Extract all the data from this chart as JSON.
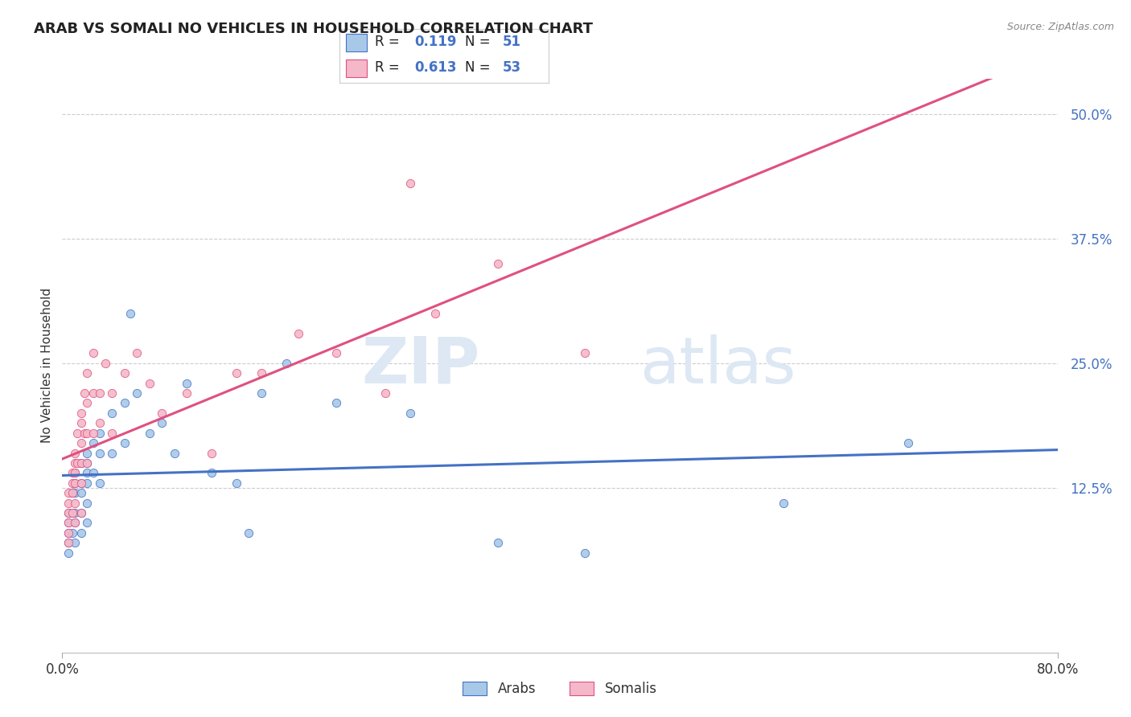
{
  "title": "ARAB VS SOMALI NO VEHICLES IN HOUSEHOLD CORRELATION CHART",
  "source_text": "Source: ZipAtlas.com",
  "ylabel": "No Vehicles in Household",
  "xmin": 0.0,
  "xmax": 0.8,
  "ymin": -0.04,
  "ymax": 0.535,
  "y_tick_labels": [
    "12.5%",
    "25.0%",
    "37.5%",
    "50.0%"
  ],
  "y_ticks": [
    0.125,
    0.25,
    0.375,
    0.5
  ],
  "arab_color": "#a8c8e8",
  "arab_edge": "#4472c4",
  "somali_color": "#f4b8c8",
  "somali_edge": "#e05080",
  "arab_R": 0.119,
  "arab_N": 51,
  "somali_R": 0.613,
  "somali_N": 53,
  "legend_label_arab": "Arabs",
  "legend_label_somali": "Somalis",
  "background_color": "#ffffff",
  "watermark_zip": "ZIP",
  "watermark_atlas": "atlas",
  "arab_line_color": "#4472c4",
  "somali_line_color": "#e05080",
  "diag_line_color": "#e8a0b0",
  "arab_scatter_x": [
    0.005,
    0.005,
    0.005,
    0.005,
    0.005,
    0.008,
    0.008,
    0.008,
    0.01,
    0.01,
    0.01,
    0.01,
    0.01,
    0.01,
    0.015,
    0.015,
    0.015,
    0.015,
    0.015,
    0.02,
    0.02,
    0.02,
    0.02,
    0.02,
    0.02,
    0.025,
    0.025,
    0.03,
    0.03,
    0.03,
    0.04,
    0.04,
    0.05,
    0.05,
    0.055,
    0.06,
    0.07,
    0.08,
    0.09,
    0.1,
    0.12,
    0.14,
    0.15,
    0.16,
    0.18,
    0.22,
    0.28,
    0.35,
    0.42,
    0.58,
    0.68
  ],
  "arab_scatter_y": [
    0.1,
    0.09,
    0.08,
    0.07,
    0.06,
    0.12,
    0.1,
    0.08,
    0.14,
    0.13,
    0.12,
    0.1,
    0.09,
    0.07,
    0.15,
    0.13,
    0.12,
    0.1,
    0.08,
    0.16,
    0.15,
    0.14,
    0.13,
    0.11,
    0.09,
    0.17,
    0.14,
    0.18,
    0.16,
    0.13,
    0.2,
    0.16,
    0.21,
    0.17,
    0.3,
    0.22,
    0.18,
    0.19,
    0.16,
    0.23,
    0.14,
    0.13,
    0.08,
    0.22,
    0.25,
    0.21,
    0.2,
    0.07,
    0.06,
    0.11,
    0.17
  ],
  "somali_scatter_x": [
    0.005,
    0.005,
    0.005,
    0.005,
    0.005,
    0.005,
    0.008,
    0.008,
    0.008,
    0.008,
    0.01,
    0.01,
    0.01,
    0.01,
    0.01,
    0.01,
    0.012,
    0.012,
    0.015,
    0.015,
    0.015,
    0.015,
    0.015,
    0.015,
    0.018,
    0.018,
    0.02,
    0.02,
    0.02,
    0.02,
    0.025,
    0.025,
    0.025,
    0.03,
    0.03,
    0.035,
    0.04,
    0.04,
    0.05,
    0.06,
    0.07,
    0.08,
    0.1,
    0.12,
    0.14,
    0.16,
    0.19,
    0.22,
    0.26,
    0.3,
    0.35,
    0.28,
    0.42
  ],
  "somali_scatter_y": [
    0.12,
    0.11,
    0.1,
    0.09,
    0.08,
    0.07,
    0.14,
    0.13,
    0.12,
    0.1,
    0.16,
    0.15,
    0.14,
    0.13,
    0.11,
    0.09,
    0.18,
    0.15,
    0.2,
    0.19,
    0.17,
    0.15,
    0.13,
    0.1,
    0.22,
    0.18,
    0.24,
    0.21,
    0.18,
    0.15,
    0.26,
    0.22,
    0.18,
    0.22,
    0.19,
    0.25,
    0.22,
    0.18,
    0.24,
    0.26,
    0.23,
    0.2,
    0.22,
    0.16,
    0.24,
    0.24,
    0.28,
    0.26,
    0.22,
    0.3,
    0.35,
    0.43,
    0.26
  ]
}
